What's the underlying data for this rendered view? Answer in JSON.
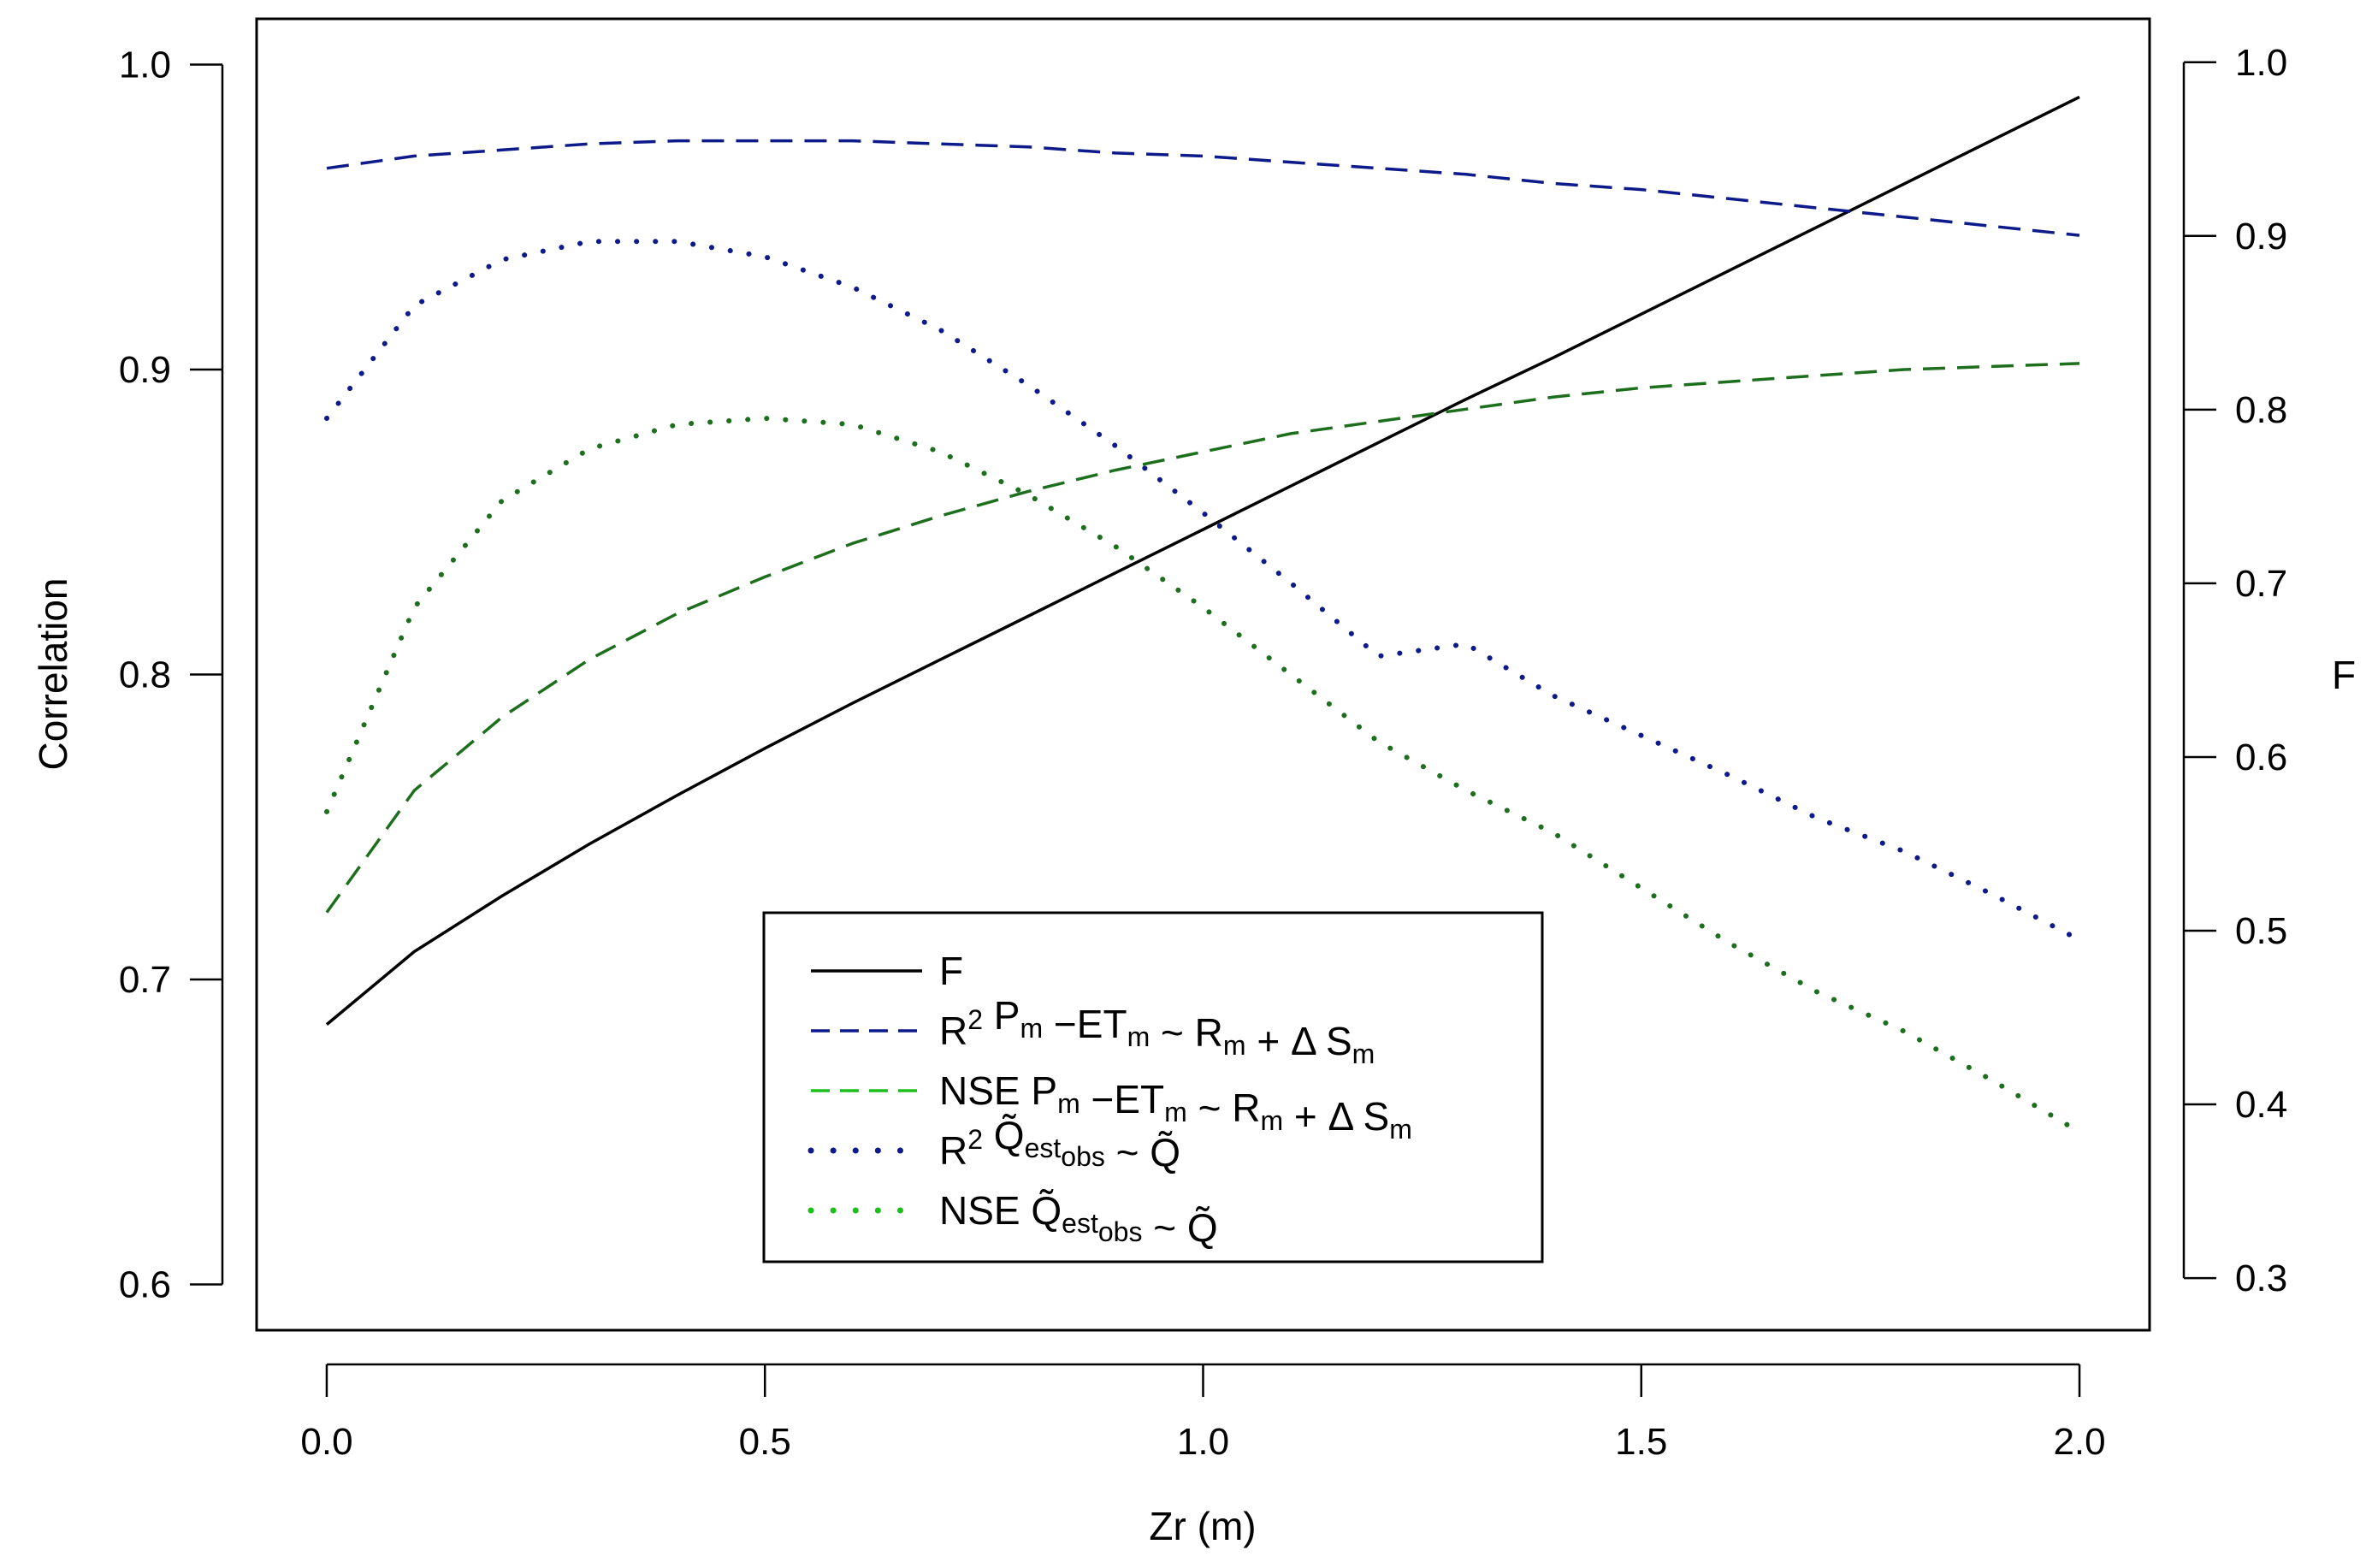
{
  "chart_data": {
    "type": "line",
    "xlabel": "Zr (m)",
    "ylabel": "Correlation",
    "y2label": "F",
    "xlim": [
      -0.08,
      2.08
    ],
    "ylim": [
      0.585,
      1.015
    ],
    "y2lim": [
      0.27,
      1.025
    ],
    "x_ticks": [
      "0.0",
      "0.5",
      "1.0",
      "1.5",
      "2.0"
    ],
    "y_ticks": [
      "0.6",
      "0.7",
      "0.8",
      "0.9",
      "1.0"
    ],
    "y2_ticks": [
      "0.3",
      "0.4",
      "0.5",
      "0.6",
      "0.7",
      "0.8",
      "0.9",
      "1.0"
    ],
    "legend_position": "bottom-center",
    "x": [
      0.0,
      0.1,
      0.2,
      0.3,
      0.4,
      0.5,
      0.6,
      0.7,
      0.8,
      0.9,
      1.0,
      1.1,
      1.2,
      1.3,
      1.4,
      1.5,
      1.6,
      1.7,
      1.8,
      1.9,
      2.0
    ],
    "series": [
      {
        "axis": "right",
        "style": "solid",
        "color": "#000000",
        "legend": {
          "main": "F"
        },
        "values": [
          0.446,
          0.488,
          0.52,
          0.55,
          0.578,
          0.605,
          0.631,
          0.656,
          0.681,
          0.706,
          0.731,
          0.756,
          0.781,
          0.806,
          0.83,
          0.855,
          0.88,
          0.905,
          0.93,
          0.955,
          0.98
        ]
      },
      {
        "axis": "left",
        "style": "dashed",
        "color": "#0d1a8a",
        "legend": {
          "prefix": "R",
          "sup": "2",
          "main": " P",
          "sub1": "m",
          "mid": " −ET",
          "sub2": "m",
          "rest": " ~ R",
          "sub3": "m",
          "rest2": " + Δ S",
          "sub4": "m"
        },
        "values": [
          0.966,
          0.97,
          0.972,
          0.974,
          0.975,
          0.975,
          0.975,
          0.974,
          0.973,
          0.971,
          0.97,
          0.968,
          0.966,
          0.964,
          0.961,
          0.959,
          0.956,
          0.953,
          0.95,
          0.947,
          0.944
        ]
      },
      {
        "axis": "left",
        "style": "dashed",
        "color": "#1d6f1d",
        "legend": {
          "prefix": "NSE",
          "main": " P",
          "sub1": "m",
          "mid": " −ET",
          "sub2": "m",
          "rest": " ~ R",
          "sub3": "m",
          "rest2": " + Δ S",
          "sub4": "m"
        },
        "values": [
          0.722,
          0.762,
          0.786,
          0.805,
          0.82,
          0.832,
          0.843,
          0.852,
          0.86,
          0.867,
          0.873,
          0.879,
          0.883,
          0.887,
          0.891,
          0.894,
          0.896,
          0.898,
          0.9,
          0.901,
          0.902
        ]
      },
      {
        "axis": "left",
        "style": "dotted",
        "color": "#0d1a8a",
        "legend": {
          "prefix": "R",
          "sup": "2",
          "main": " Q̃",
          "sub1": "est",
          "rest": " ~ Q̃",
          "sub2": "obs"
        },
        "values": [
          0.884,
          0.921,
          0.936,
          0.942,
          0.942,
          0.937,
          0.927,
          0.913,
          0.895,
          0.875,
          0.853,
          0.83,
          0.806,
          0.81,
          0.793,
          0.78,
          0.767,
          0.753,
          0.742,
          0.728,
          0.713
        ]
      },
      {
        "axis": "left",
        "style": "dotted",
        "color": "#1d6f1d",
        "legend": {
          "prefix": "NSE ",
          "main": " Q̃",
          "sub1": "est",
          "rest": " ~ Q̃",
          "sub2": "obs"
        },
        "values": [
          0.755,
          0.822,
          0.857,
          0.874,
          0.882,
          0.884,
          0.882,
          0.873,
          0.859,
          0.842,
          0.822,
          0.8,
          0.778,
          0.762,
          0.748,
          0.73,
          0.712,
          0.696,
          0.683,
          0.667,
          0.65
        ]
      }
    ]
  }
}
